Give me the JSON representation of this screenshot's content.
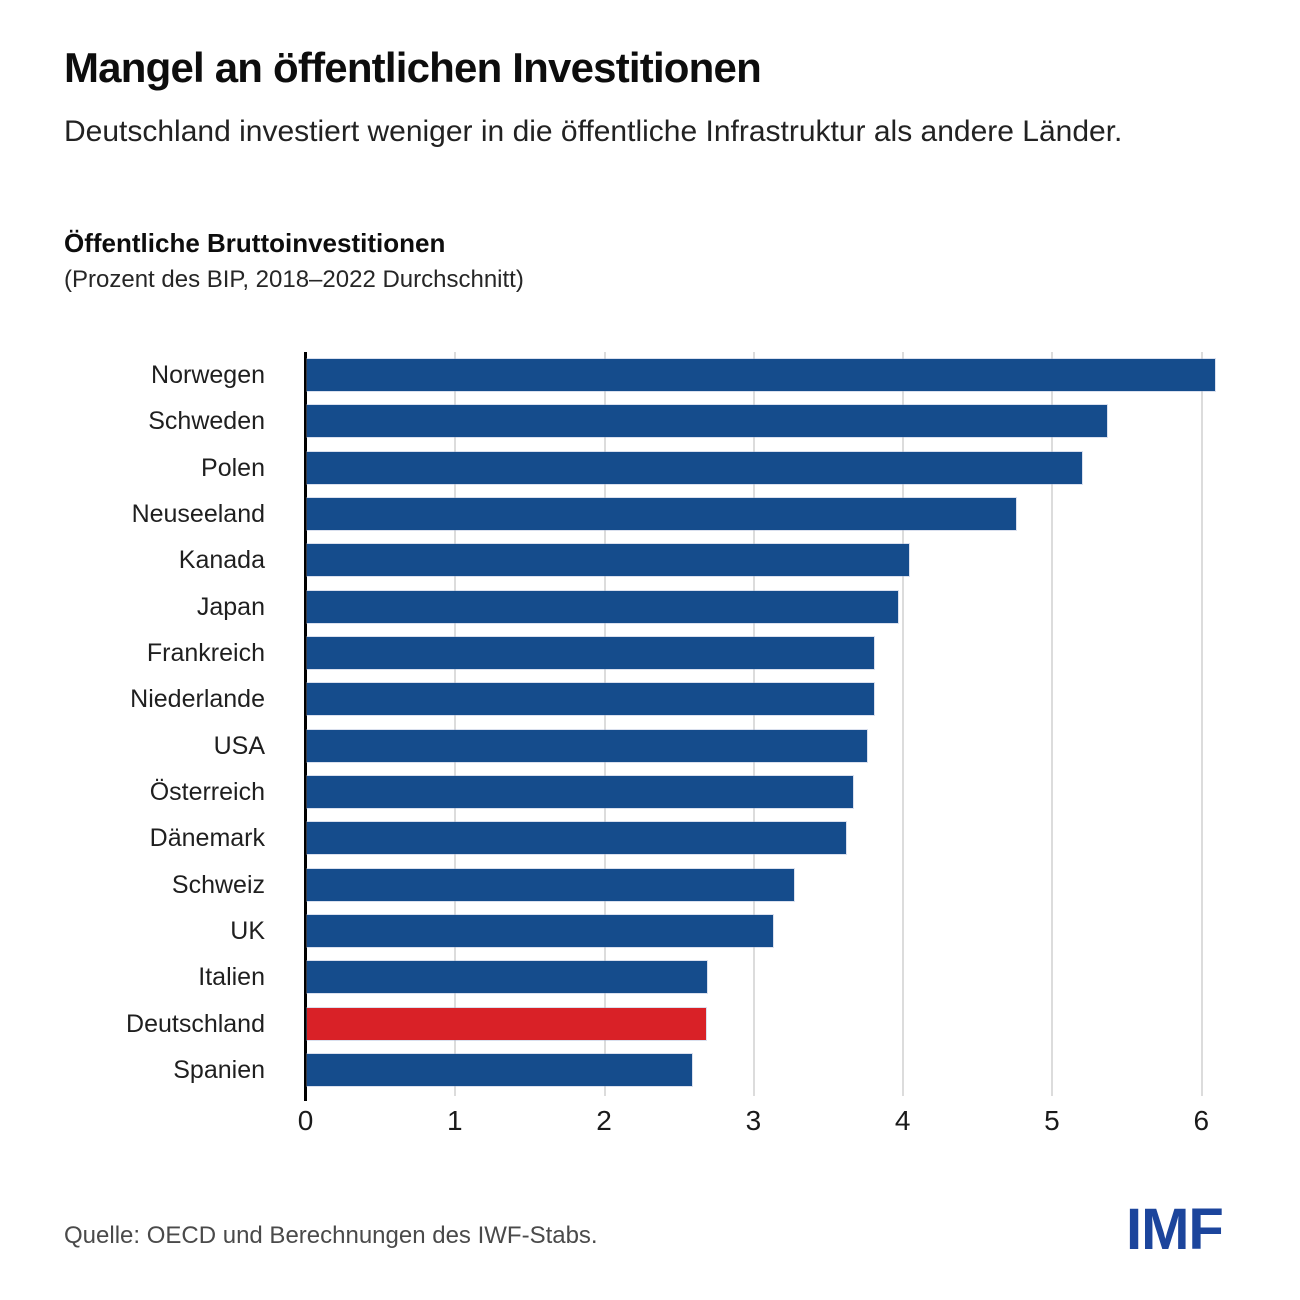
{
  "header": {
    "title": "Mangel an öffentlichen Investitionen",
    "subtitle": "Deutschland investiert weniger in die öffentliche Infrastruktur als andere Länder."
  },
  "chart": {
    "heading": "Öffentliche Bruttoinvestitionen",
    "subheading": "(Prozent des BIP, 2018–2022 Durchschnitt)"
  },
  "chart_data": {
    "type": "bar",
    "orientation": "horizontal",
    "title": "Öffentliche Bruttoinvestitionen",
    "subtitle": "(Prozent des BIP, 2018–2022 Durchschnitt)",
    "categories": [
      "Norwegen",
      "Schweden",
      "Polen",
      "Neuseeland",
      "Kanada",
      "Japan",
      "Frankreich",
      "Niederlande",
      "USA",
      "Österreich",
      "Dänemark",
      "Schweiz",
      "UK",
      "Italien",
      "Deutschland",
      "Spanien"
    ],
    "values": [
      6.08,
      5.36,
      5.19,
      4.75,
      4.03,
      3.96,
      3.8,
      3.8,
      3.75,
      3.66,
      3.61,
      3.26,
      3.12,
      2.68,
      2.67,
      2.58
    ],
    "highlight_category": "Deutschland",
    "xlabel": "",
    "ylabel": "",
    "xlim": [
      0,
      6.33
    ],
    "xticks": [
      0,
      1,
      2,
      3,
      4,
      5,
      6
    ],
    "grid": "vertical-light",
    "colors": {
      "bar": "#154C8C",
      "highlight": "#D92127",
      "gridline": "#dcdcdc",
      "axis": "#000000"
    }
  },
  "footer": {
    "source": "Quelle: OECD und Berechnungen des IWF-Stabs.",
    "logo": "IMF",
    "logo_color": "#1C459C"
  }
}
